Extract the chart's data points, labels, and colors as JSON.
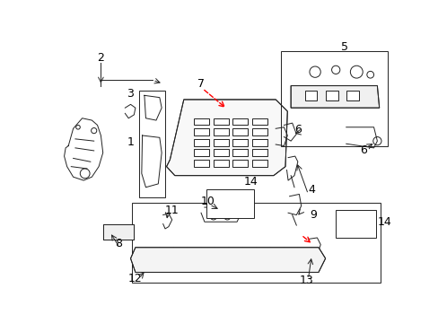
{
  "background_color": "#ffffff",
  "fig_width": 4.89,
  "fig_height": 3.6,
  "dpi": 100,
  "label_fontsize": 9,
  "line_color": "#222222",
  "lw": 0.7
}
